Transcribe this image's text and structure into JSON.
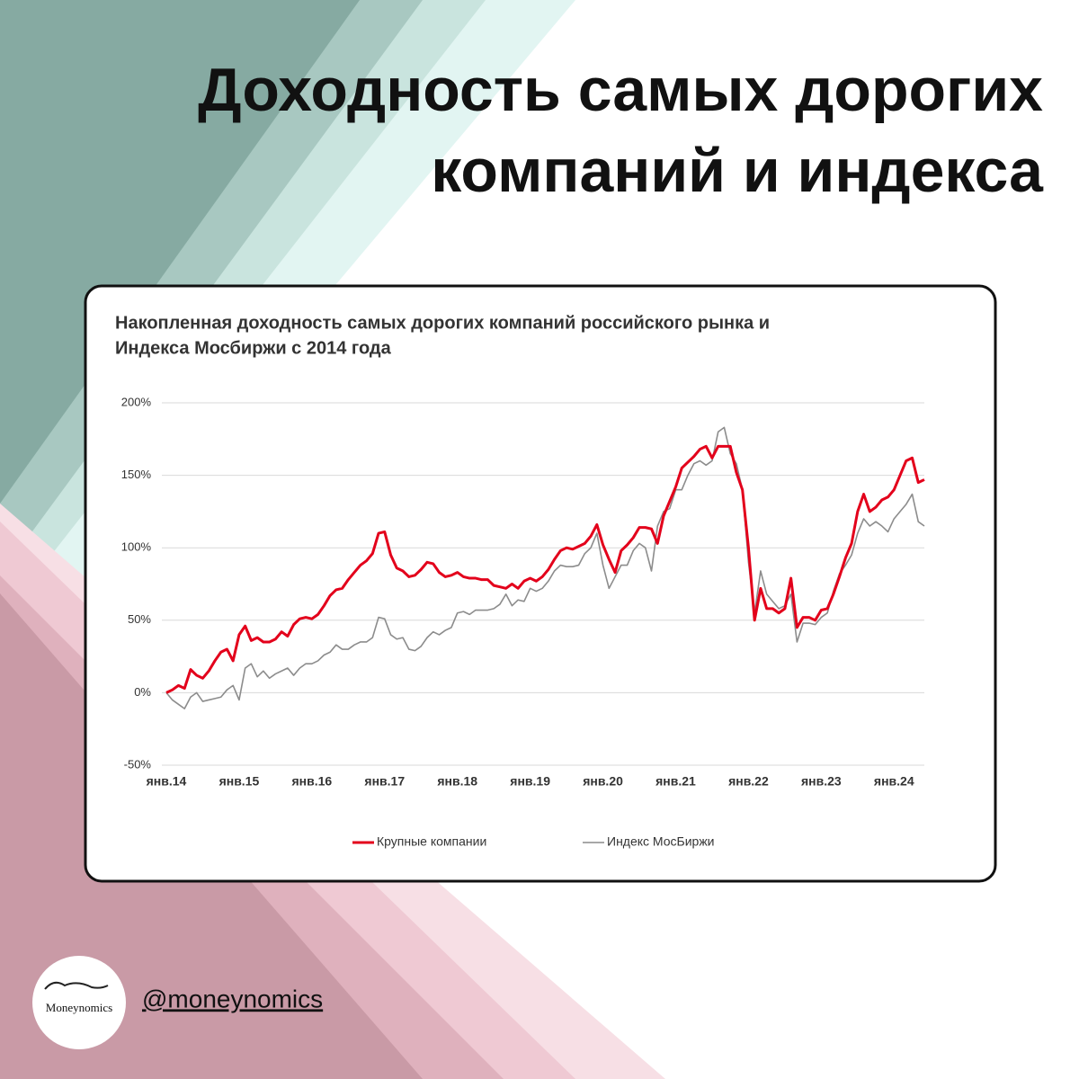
{
  "header": {
    "title": [
      "Доходность самых дорогих",
      "компаний и индекса"
    ]
  },
  "footer": {
    "logo": "Moneynomics",
    "handle": "@moneynomics"
  },
  "chart_data": {
    "type": "line",
    "title": [
      "Накопленная доходность самых дорогих компаний российского рынка и",
      "Индекса Мосбиржи с 2014 года"
    ],
    "categories": [
      "янв.14",
      null,
      null,
      null,
      null,
      null,
      null,
      null,
      null,
      null,
      null,
      null,
      "янв.15",
      null,
      null,
      null,
      null,
      null,
      null,
      null,
      null,
      null,
      null,
      null,
      "янв.16",
      null,
      null,
      null,
      null,
      null,
      null,
      null,
      null,
      null,
      null,
      null,
      "янв.17",
      null,
      null,
      null,
      null,
      null,
      null,
      null,
      null,
      null,
      null,
      null,
      "янв.18",
      null,
      null,
      null,
      null,
      null,
      null,
      null,
      null,
      null,
      null,
      null,
      "янв.19",
      null,
      null,
      null,
      null,
      null,
      null,
      null,
      null,
      null,
      null,
      null,
      "янв.20",
      null,
      null,
      null,
      null,
      null,
      null,
      null,
      null,
      null,
      null,
      null,
      "янв.21",
      null,
      null,
      null,
      null,
      null,
      null,
      null,
      null,
      null,
      null,
      null,
      "янв.22",
      null,
      null,
      null,
      null,
      null,
      null,
      null,
      null,
      null,
      null,
      null,
      "янв.23",
      null,
      null,
      null,
      null,
      null,
      null,
      null,
      null,
      null,
      null,
      null,
      "янв.24",
      null,
      null,
      null,
      null,
      null
    ],
    "series": [
      {
        "name": "Крупные компании",
        "color": "#e3001b",
        "width": 3,
        "values": [
          0,
          2,
          5,
          3,
          16,
          12,
          10,
          15,
          22,
          28,
          30,
          22,
          40,
          46,
          36,
          38,
          35,
          35,
          37,
          42,
          39,
          47,
          51,
          52,
          51,
          54,
          60,
          67,
          71,
          72,
          78,
          83,
          88,
          91,
          96,
          110,
          111,
          95,
          86,
          84,
          80,
          81,
          85,
          90,
          89,
          83,
          80,
          81,
          83,
          80,
          79,
          79,
          78,
          78,
          74,
          73,
          72,
          75,
          72,
          77,
          79,
          77,
          80,
          85,
          92,
          98,
          100,
          99,
          101,
          103,
          108,
          116,
          102,
          92,
          83,
          98,
          102,
          107,
          114,
          114,
          113,
          103,
          122,
          132,
          142,
          155,
          159,
          163,
          168,
          170,
          162,
          170,
          170,
          170,
          152,
          140,
          100,
          50,
          72,
          58,
          58,
          55,
          58,
          79,
          45,
          52,
          52,
          50,
          57,
          58,
          68,
          80,
          93,
          103,
          125,
          137,
          125,
          128,
          133,
          135,
          140,
          150,
          160,
          162,
          145,
          147
        ]
      },
      {
        "name": "Индекс МосБиржи",
        "color": "#8c8c8c",
        "width": 1.6,
        "values": [
          0,
          -5,
          -8,
          -11,
          -3,
          0,
          -6,
          -5,
          -4,
          -3,
          2,
          5,
          -5,
          17,
          20,
          11,
          15,
          10,
          13,
          15,
          17,
          12,
          17,
          20,
          20,
          22,
          26,
          28,
          33,
          30,
          30,
          33,
          35,
          35,
          38,
          52,
          51,
          40,
          37,
          38,
          30,
          29,
          32,
          38,
          42,
          40,
          43,
          45,
          55,
          56,
          54,
          57,
          57,
          57,
          58,
          61,
          68,
          60,
          64,
          63,
          72,
          70,
          72,
          77,
          84,
          88,
          87,
          87,
          88,
          96,
          100,
          110,
          88,
          72,
          80,
          88,
          88,
          98,
          103,
          100,
          84,
          115,
          125,
          127,
          140,
          140,
          150,
          158,
          160,
          157,
          160,
          180,
          183,
          165,
          158,
          140,
          90,
          55,
          84,
          68,
          63,
          58,
          60,
          68,
          35,
          48,
          48,
          47,
          52,
          55,
          70,
          82,
          88,
          95,
          110,
          120,
          115,
          118,
          115,
          111,
          120,
          125,
          130,
          137,
          118,
          115
        ]
      }
    ],
    "ylim": [
      -50,
      200
    ],
    "yticks": [
      {
        "value": -50,
        "label": "-50%"
      },
      {
        "value": 0,
        "label": "0%"
      },
      {
        "value": 50,
        "label": "50%"
      },
      {
        "value": 100,
        "label": "100%"
      },
      {
        "value": 150,
        "label": "150%"
      },
      {
        "value": 200,
        "label": "200%"
      }
    ],
    "grid": true,
    "legend": "bottom"
  }
}
